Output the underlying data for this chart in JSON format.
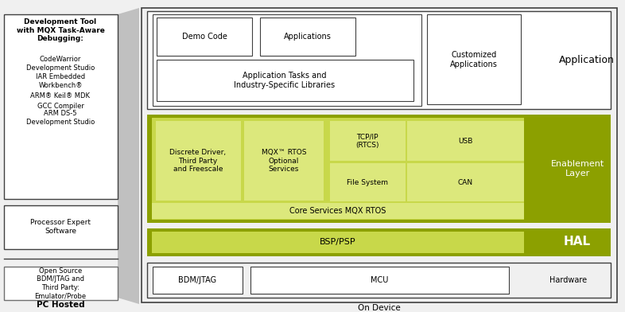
{
  "white": "#ffffff",
  "bg": "#f0f0f0",
  "olive_dark": "#8ca000",
  "olive_light": "#c8d84a",
  "olive_lighter": "#dce87c",
  "border_dark": "#404040",
  "border_med": "#606060",
  "gray_bg": "#e8e8e8",
  "shadow": "#c8c8c8",
  "left_box1_title": "Development Tool\nwith MQX Task-Aware\nDebugging:",
  "left_box1_items": [
    "CodeWarrior\nDevelopment Studio",
    "IAR Embedded\nWorkbench®",
    "ARM® Keil® MDK",
    "GCC Compiler",
    "ARM DS-5\nDevelopment Studio"
  ],
  "left_box2_text": "Processor Expert\nSoftware",
  "left_box3_text": "Open Source\nBDM/JTAG and\nThird Party:\nEmulator/Probe",
  "pc_hosted": "PC Hosted",
  "app_label": "Application",
  "demo_code": "Demo Code",
  "applications": "Applications",
  "customized_apps": "Customized\nApplications",
  "app_tasks": "Application Tasks and\nIndustry-Specific Libraries",
  "enablement_label": "Enablement\nLayer",
  "discrete_driver": "Discrete Driver,\nThird Party\nand Freescale",
  "mqx_rtos": "MQX™ RTOS\nOptional\nServices",
  "tcpip": "TCP/IP\n(RTCS)",
  "usb": "USB",
  "filesystem": "File System",
  "can": "CAN",
  "core_services": "Core Services MQX RTOS",
  "hal_label": "HAL",
  "bsp_psp": "BSP/PSP",
  "hardware_label": "Hardware",
  "bdm_jtag": "BDM/JTAG",
  "mcu": "MCU",
  "on_device": "On Device"
}
